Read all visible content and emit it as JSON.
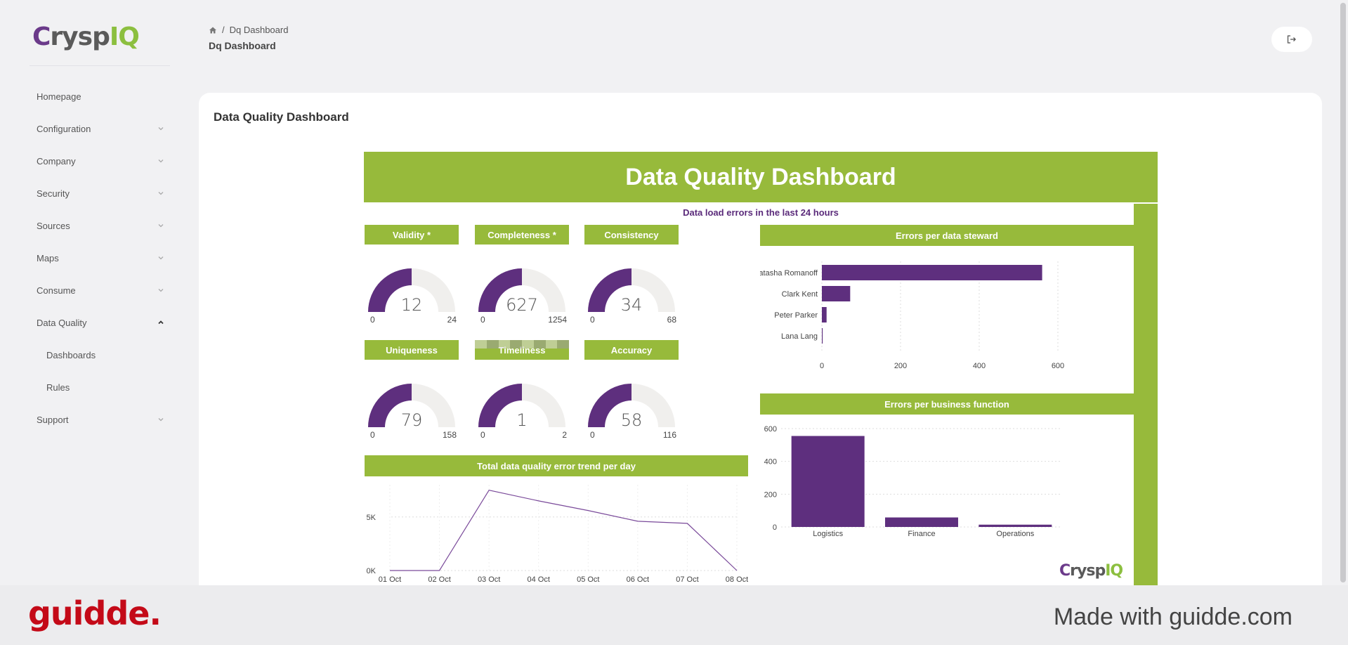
{
  "brand": {
    "logo_c": "C",
    "logo_rysp": "rysp",
    "logo_iq": "IQ",
    "colors": {
      "green": "#97ba3b",
      "purple": "#5e2f7e"
    }
  },
  "sidebar": {
    "items": [
      {
        "label": "Homepage",
        "chevron": "none"
      },
      {
        "label": "Configuration",
        "chevron": "down"
      },
      {
        "label": "Company",
        "chevron": "down"
      },
      {
        "label": "Security",
        "chevron": "down"
      },
      {
        "label": "Sources",
        "chevron": "down"
      },
      {
        "label": "Maps",
        "chevron": "down"
      },
      {
        "label": "Consume",
        "chevron": "down"
      },
      {
        "label": "Data Quality",
        "chevron": "up"
      },
      {
        "label": "Dashboards",
        "chevron": "none",
        "sub": true
      },
      {
        "label": "Rules",
        "chevron": "none",
        "sub": true
      },
      {
        "label": "Support",
        "chevron": "down"
      }
    ]
  },
  "header": {
    "breadcrumb_sep": "/",
    "breadcrumb": "Dq Dashboard",
    "subtitle": "Dq Dashboard"
  },
  "card": {
    "title": "Data Quality Dashboard"
  },
  "report": {
    "banner": "Data Quality Dashboard",
    "load_errors_label": "Data load errors in the last 24 hours",
    "gauges": [
      {
        "title": "Validity *",
        "value": "12",
        "min": "0",
        "max": "24",
        "fraction": 0.5
      },
      {
        "title": "Completeness *",
        "value": "627",
        "min": "0",
        "max": "1254",
        "fraction": 0.5
      },
      {
        "title": "Consistency",
        "value": "34",
        "min": "0",
        "max": "68",
        "fraction": 0.5
      },
      {
        "title": "Uniqueness",
        "value": "79",
        "min": "0",
        "max": "158",
        "fraction": 0.5
      },
      {
        "title": "Timeliness",
        "value": "1",
        "min": "0",
        "max": "2",
        "fraction": 0.5
      },
      {
        "title": "Accuracy",
        "value": "58",
        "min": "0",
        "max": "116",
        "fraction": 0.5
      }
    ]
  },
  "chart_data": [
    {
      "type": "bar",
      "orientation": "horizontal",
      "title": "Errors per data steward",
      "categories": [
        "Natasha Romanoff",
        "Clark Kent",
        "Peter Parker",
        "Lana Lang"
      ],
      "values": [
        560,
        72,
        12,
        2
      ],
      "xlim": [
        0,
        600
      ],
      "xticks": [
        "0",
        "200",
        "400",
        "600"
      ],
      "grid": true
    },
    {
      "type": "bar",
      "title": "Errors per business function",
      "categories": [
        "Logistics",
        "Finance",
        "Operations"
      ],
      "values": [
        555,
        58,
        14
      ],
      "ylim": [
        0,
        600
      ],
      "yticks": [
        "0",
        "200",
        "400",
        "600"
      ],
      "grid": true
    },
    {
      "type": "line",
      "title": "Total data quality error trend per day",
      "x": [
        "01 Oct",
        "02 Oct",
        "03 Oct",
        "04 Oct",
        "05 Oct",
        "06 Oct",
        "07 Oct",
        "08 Oct"
      ],
      "values": [
        0,
        0,
        7500,
        6500,
        5600,
        4600,
        4400,
        0
      ],
      "yticks": [
        "0K",
        "5K"
      ],
      "ylim": [
        0,
        8000
      ],
      "grid": true
    }
  ],
  "footer": {
    "brand": "guidde.",
    "tagline": "Made with guidde.com"
  }
}
